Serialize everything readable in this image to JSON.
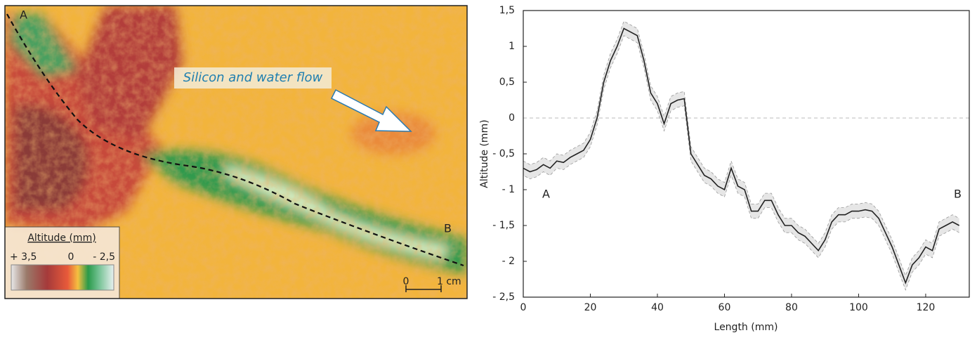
{
  "map": {
    "point_a": "A",
    "point_b": "B",
    "annotation": "Silicon and water flow",
    "legend": {
      "title": "Altitude (mm)",
      "max": "+ 3,5",
      "mid": "0",
      "min": "- 2,5"
    },
    "scale": {
      "start": "0",
      "end": "1 cm"
    }
  },
  "chart_data": {
    "type": "line",
    "x_label": "Length (mm)",
    "y_label": "Altitude (mm)",
    "annotations": [
      "A",
      "B"
    ],
    "x": [
      0,
      2,
      4,
      6,
      8,
      10,
      12,
      14,
      16,
      18,
      20,
      22,
      24,
      26,
      28,
      30,
      32,
      34,
      36,
      38,
      40,
      42,
      44,
      46,
      48,
      50,
      52,
      54,
      56,
      58,
      60,
      62,
      64,
      66,
      68,
      70,
      72,
      74,
      76,
      78,
      80,
      82,
      84,
      86,
      88,
      90,
      92,
      94,
      96,
      98,
      100,
      102,
      104,
      106,
      108,
      110,
      112,
      114,
      116,
      118,
      120,
      122,
      124,
      126,
      128,
      130
    ],
    "series": [
      {
        "color": "#222222",
        "values": [
          -0.7,
          -0.75,
          -0.72,
          -0.65,
          -0.7,
          -0.6,
          -0.62,
          -0.55,
          -0.5,
          -0.45,
          -0.3,
          0.0,
          0.5,
          0.8,
          1.0,
          1.25,
          1.2,
          1.15,
          0.8,
          0.35,
          0.2,
          -0.08,
          0.2,
          0.25,
          0.27,
          -0.5,
          -0.65,
          -0.8,
          -0.85,
          -0.95,
          -1.0,
          -0.7,
          -0.95,
          -1.0,
          -1.3,
          -1.3,
          -1.15,
          -1.15,
          -1.35,
          -1.5,
          -1.5,
          -1.6,
          -1.65,
          -1.75,
          -1.85,
          -1.7,
          -1.45,
          -1.35,
          -1.35,
          -1.3,
          -1.3,
          -1.28,
          -1.3,
          -1.4,
          -1.6,
          -1.8,
          -2.05,
          -2.3,
          -2.05,
          -1.95,
          -1.8,
          -1.85,
          -1.55,
          -1.5,
          -1.45,
          -1.5
        ]
      }
    ],
    "uncertainty": 0.1,
    "xlim": [
      0,
      133
    ],
    "xticks": [
      0,
      20,
      40,
      60,
      80,
      100,
      120
    ],
    "ylim": [
      -2.5,
      1.5
    ],
    "yticks": [
      {
        "value": -2.5,
        "label": "- 2,5"
      },
      {
        "value": -2,
        "label": "- 2"
      },
      {
        "value": -1.5,
        "label": "- 1,5"
      },
      {
        "value": -1,
        "label": "- 1"
      },
      {
        "value": -0.5,
        "label": "- 0,5"
      },
      0,
      {
        "value": 0.5,
        "label": "0,5"
      },
      1,
      {
        "value": 1.5,
        "label": "1,5"
      }
    ],
    "zero_line": true
  }
}
